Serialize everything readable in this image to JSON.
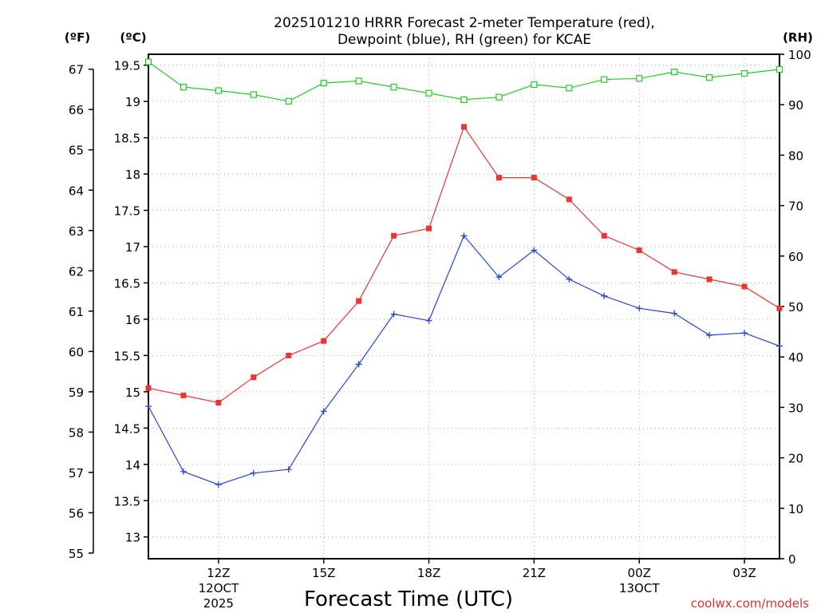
{
  "colors": {
    "temperature": "#ee3333",
    "dewpoint": "#2244dd",
    "rh": "#22cc22"
  },
  "chart_data": {
    "type": "line",
    "title_line1": "2025101210 HRRR Forecast 2-meter Temperature (red),",
    "title_line2": "Dewpoint (blue), RH (green) for KCAE",
    "xlabel": "Forecast Time (UTC)",
    "credit": "coolwx.com/models",
    "units": {
      "fahrenheit": "(ºF)",
      "celsius": "(ºC)",
      "rh": "(RH)"
    },
    "x_hours": [
      10,
      11,
      12,
      13,
      14,
      15,
      16,
      17,
      18,
      19,
      20,
      21,
      22,
      23,
      24,
      25,
      26,
      27,
      28
    ],
    "x_ticks": [
      {
        "hour": 12,
        "label": "12Z",
        "sub1": "12OCT",
        "sub2": "2025"
      },
      {
        "hour": 15,
        "label": "15Z",
        "sub1": "",
        "sub2": ""
      },
      {
        "hour": 18,
        "label": "18Z",
        "sub1": "",
        "sub2": ""
      },
      {
        "hour": 21,
        "label": "21Z",
        "sub1": "",
        "sub2": ""
      },
      {
        "hour": 24,
        "label": "00Z",
        "sub1": "13OCT",
        "sub2": ""
      },
      {
        "hour": 27,
        "label": "03Z",
        "sub1": "",
        "sub2": ""
      }
    ],
    "xlim": [
      10,
      28
    ],
    "celsius_axis": {
      "ylim": [
        12.7,
        19.65
      ],
      "ticks": [
        13,
        13.5,
        14,
        14.5,
        15,
        15.5,
        16,
        16.5,
        17,
        17.5,
        18,
        18.5,
        19,
        19.5
      ]
    },
    "fahrenheit_axis": {
      "ticks": [
        55,
        56,
        57,
        58,
        59,
        60,
        61,
        62,
        63,
        64,
        65,
        66,
        67
      ]
    },
    "rh_axis": {
      "ylim": [
        0,
        100
      ],
      "ticks": [
        0,
        10,
        20,
        30,
        40,
        50,
        60,
        70,
        80,
        90,
        100
      ]
    },
    "series": [
      {
        "name": "Temperature",
        "axis": "celsius",
        "marker": "filled-square",
        "values": [
          15.05,
          14.95,
          14.85,
          15.2,
          15.5,
          15.7,
          16.25,
          17.15,
          17.25,
          18.65,
          17.95,
          17.95,
          17.65,
          17.15,
          16.95,
          16.65,
          16.55,
          16.45,
          16.15
        ]
      },
      {
        "name": "Dewpoint",
        "axis": "celsius",
        "marker": "plus",
        "values": [
          14.8,
          13.9,
          13.72,
          13.88,
          13.93,
          14.73,
          15.38,
          16.07,
          15.98,
          17.15,
          16.58,
          16.95,
          16.55,
          16.32,
          16.15,
          16.08,
          15.78,
          15.81,
          15.63
        ]
      },
      {
        "name": "RH",
        "axis": "rh",
        "marker": "open-square",
        "values": [
          98.5,
          93.5,
          92.8,
          92.0,
          90.7,
          94.3,
          94.7,
          93.5,
          92.3,
          91.0,
          91.5,
          94.0,
          93.3,
          95.0,
          95.2,
          96.5,
          95.4,
          96.2,
          97.0
        ]
      }
    ]
  }
}
